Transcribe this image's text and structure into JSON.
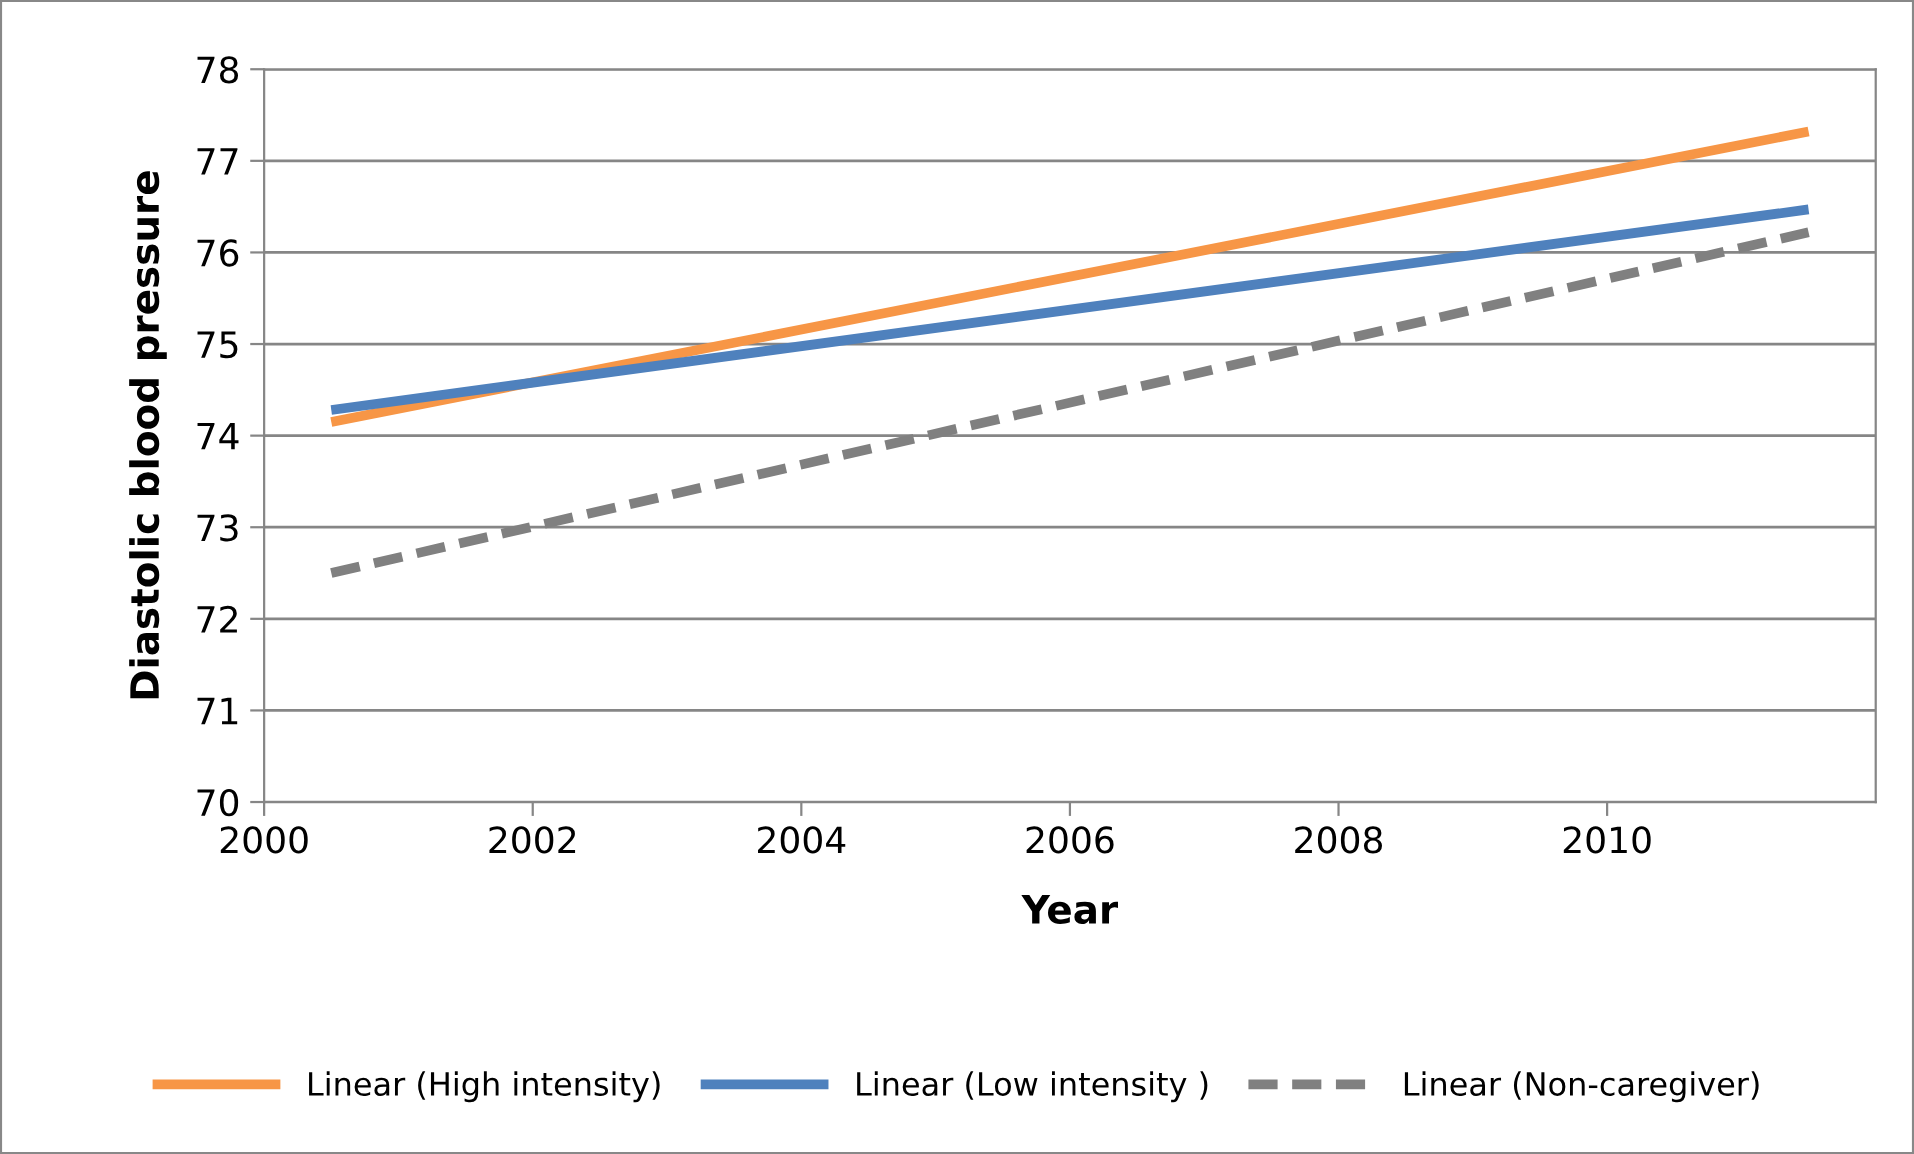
{
  "chart_data": {
    "type": "line",
    "xlabel": "Year",
    "ylabel": "Diastolic blood pressure",
    "xlim": [
      2000,
      2012
    ],
    "xticks": [
      2000,
      2002,
      2004,
      2006,
      2008,
      2010
    ],
    "ylim": [
      70,
      78
    ],
    "yticks": [
      70,
      71,
      72,
      73,
      74,
      75,
      76,
      77,
      78
    ],
    "x": [
      2000.5,
      2011.5
    ],
    "grid": "y",
    "legend": "bottom",
    "marker": "none",
    "series": [
      {
        "name": "Linear (High intensity)",
        "color": "#f79646",
        "values": [
          74.15,
          77.32
        ],
        "line_style": "solid"
      },
      {
        "name": "Linear (Low intensity )",
        "color": "#4f81bd",
        "values": [
          74.28,
          76.47
        ],
        "line_style": "solid"
      },
      {
        "name": "Linear (Non-caregiver)",
        "color": "#808080",
        "values": [
          72.5,
          76.22
        ],
        "line_style": "dashed"
      }
    ]
  }
}
